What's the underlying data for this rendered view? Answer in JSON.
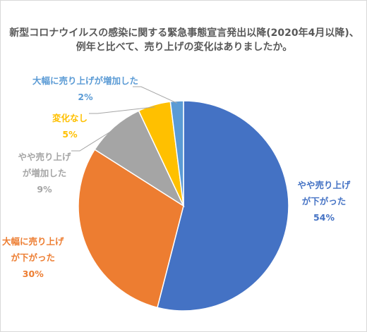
{
  "chart_data": {
    "type": "pie",
    "title": [
      "新型コロナウイルスの感染に関する緊急事態宣言発出以降(2020年4月以降)、",
      "例年と比べて、売り上げの変化はありましたか。"
    ],
    "slices": [
      {
        "label_lines": [
          "やや売り上げ",
          "が下がった"
        ],
        "value": 54,
        "value_label": "54%",
        "color": "#4472C4"
      },
      {
        "label_lines": [
          "大幅に売り上げ",
          "が下がった"
        ],
        "value": 30,
        "value_label": "30%",
        "color": "#ED7D31"
      },
      {
        "label_lines": [
          "やや売り上げ",
          "が増加した"
        ],
        "value": 9,
        "value_label": "9%",
        "color": "#A5A5A5"
      },
      {
        "label_lines": [
          "変化なし"
        ],
        "value": 5,
        "value_label": "5%",
        "color": "#FFC000"
      },
      {
        "label_lines": [
          "大幅に売り上げが増加した"
        ],
        "value": 2,
        "value_label": "2%",
        "color": "#5B9BD5"
      }
    ]
  }
}
